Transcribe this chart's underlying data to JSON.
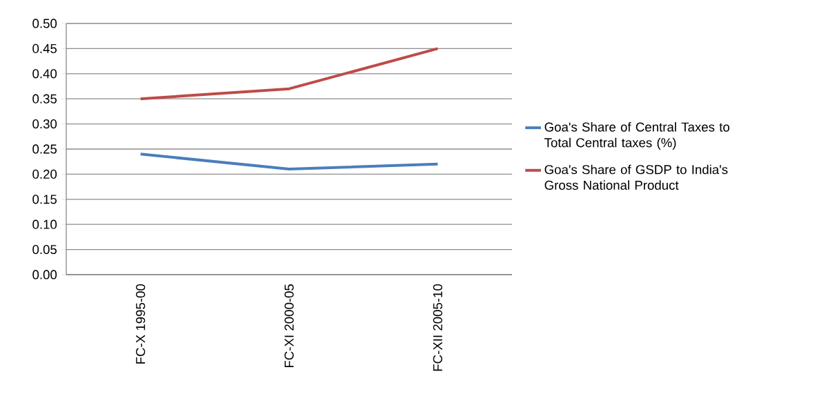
{
  "chart_data": {
    "type": "line",
    "categories": [
      "FC-X  1995-00",
      "FC-XI  2000-05",
      "FC-XII 2005-10"
    ],
    "series": [
      {
        "name": "Goa's Share of Central Taxes to Total  Central  taxes  (%)",
        "color": "#4a7ebb",
        "values": [
          0.24,
          0.21,
          0.22
        ]
      },
      {
        "name": "Goa's Share of GSDP to India's Gross National Product",
        "color": "#be4b48",
        "values": [
          0.35,
          0.37,
          0.45
        ]
      }
    ],
    "ylim": [
      0,
      0.5
    ],
    "yticks": [
      {
        "value": 0,
        "label": "0.00"
      },
      {
        "value": 0.05,
        "label": "0.05"
      },
      {
        "value": 0.1,
        "label": "0.10"
      },
      {
        "value": 0.15,
        "label": "0.15"
      },
      {
        "value": 0.2,
        "label": "0.20"
      },
      {
        "value": 0.25,
        "label": "0.25"
      },
      {
        "value": 0.3,
        "label": "0.30"
      },
      {
        "value": 0.35,
        "label": "0.35"
      },
      {
        "value": 0.4,
        "label": "0.40"
      },
      {
        "value": 0.45,
        "label": "0.45"
      },
      {
        "value": 0.5,
        "label": "0.50"
      }
    ],
    "grid": "y",
    "legend": "right",
    "marker": "none",
    "line_style": "solid"
  }
}
